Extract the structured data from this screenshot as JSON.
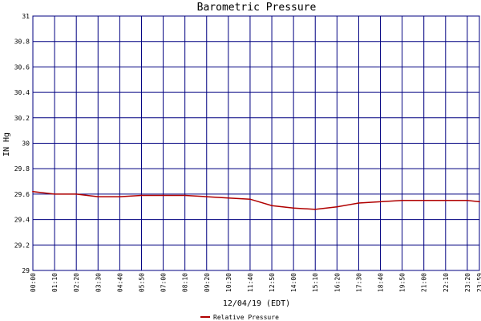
{
  "chart_data": {
    "type": "line",
    "title": "Barometric Pressure",
    "xlabel": "12/04/19 (EDT)",
    "ylabel": "IN Hg",
    "ylim": [
      29,
      31
    ],
    "yticks": [
      "29",
      "29.2",
      "29.4",
      "29.6",
      "29.8",
      "30",
      "30.2",
      "30.4",
      "30.6",
      "30.8",
      "31"
    ],
    "xticks": [
      "00:00",
      "01:10",
      "02:20",
      "03:30",
      "04:40",
      "05:50",
      "07:00",
      "08:10",
      "09:20",
      "10:30",
      "11:40",
      "12:50",
      "14:00",
      "15:10",
      "16:20",
      "17:30",
      "18:40",
      "19:50",
      "21:00",
      "22:10",
      "23:20",
      "23:59"
    ],
    "grid": true,
    "legend_position": "bottom-center",
    "colors": {
      "series": "#b00000",
      "grid": "#000080",
      "axis": "#000000"
    },
    "series": [
      {
        "name": "Relative Pressure",
        "x": [
          "00:00",
          "01:10",
          "02:20",
          "03:30",
          "04:40",
          "05:50",
          "07:00",
          "08:10",
          "09:20",
          "10:30",
          "11:40",
          "12:50",
          "14:00",
          "15:10",
          "16:20",
          "17:30",
          "18:40",
          "19:50",
          "21:00",
          "22:10",
          "23:20",
          "23:59"
        ],
        "values": [
          29.62,
          29.6,
          29.6,
          29.58,
          29.58,
          29.59,
          29.59,
          29.59,
          29.58,
          29.57,
          29.56,
          29.51,
          29.49,
          29.48,
          29.5,
          29.53,
          29.54,
          29.55,
          29.55,
          29.55,
          29.55,
          29.54
        ]
      }
    ]
  }
}
